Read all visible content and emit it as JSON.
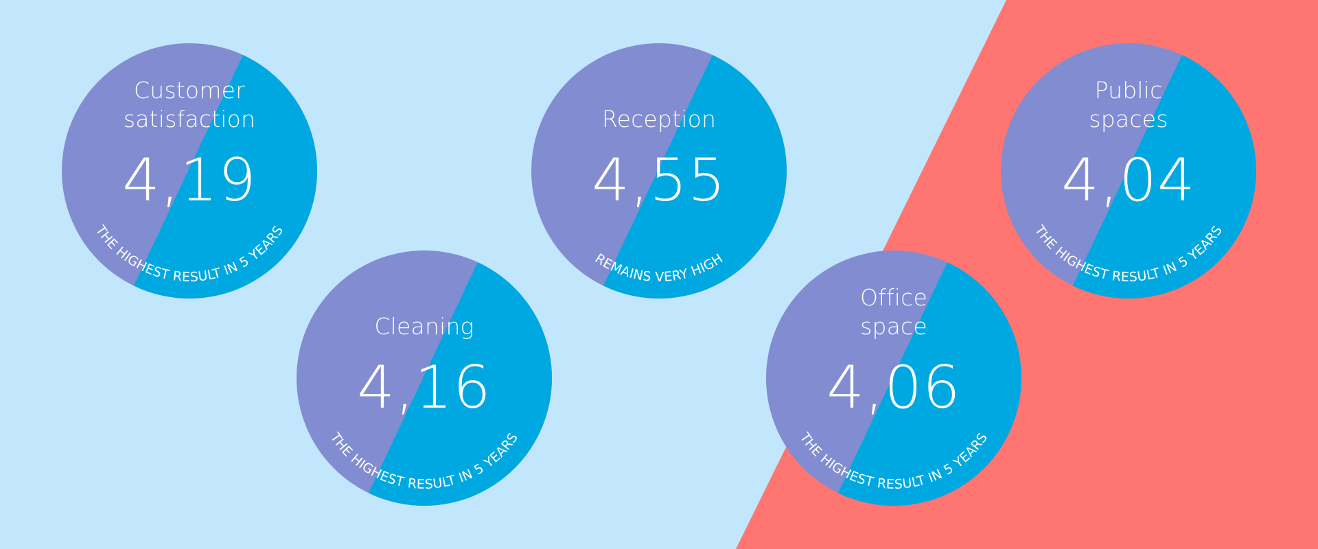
{
  "colors": {
    "background_left": "#c2e6fc",
    "background_right": "#ff7572",
    "badge_left": "#828cd1",
    "badge_right": "#00a8e1",
    "text": "#ffffff"
  },
  "badges": [
    {
      "title_line1": "Customer",
      "title_line2": "satisfaction",
      "value": "4,19",
      "caption": "THE HIGHEST RESULT IN 5 YEARS"
    },
    {
      "title_line1": "Reception",
      "title_line2": "",
      "value": "4,55",
      "caption": "REMAINS VERY HIGH"
    },
    {
      "title_line1": "Public",
      "title_line2": "spaces",
      "value": "4,04",
      "caption": "THE HIGHEST RESULT IN 5 YEARS"
    },
    {
      "title_line1": "Cleaning",
      "title_line2": "",
      "value": "4,16",
      "caption": "THE HIGHEST RESULT IN 5 YEARS"
    },
    {
      "title_line1": "Office",
      "title_line2": "space",
      "value": "4,06",
      "caption": "THE HIGHEST RESULT IN 5 YEARS"
    }
  ]
}
